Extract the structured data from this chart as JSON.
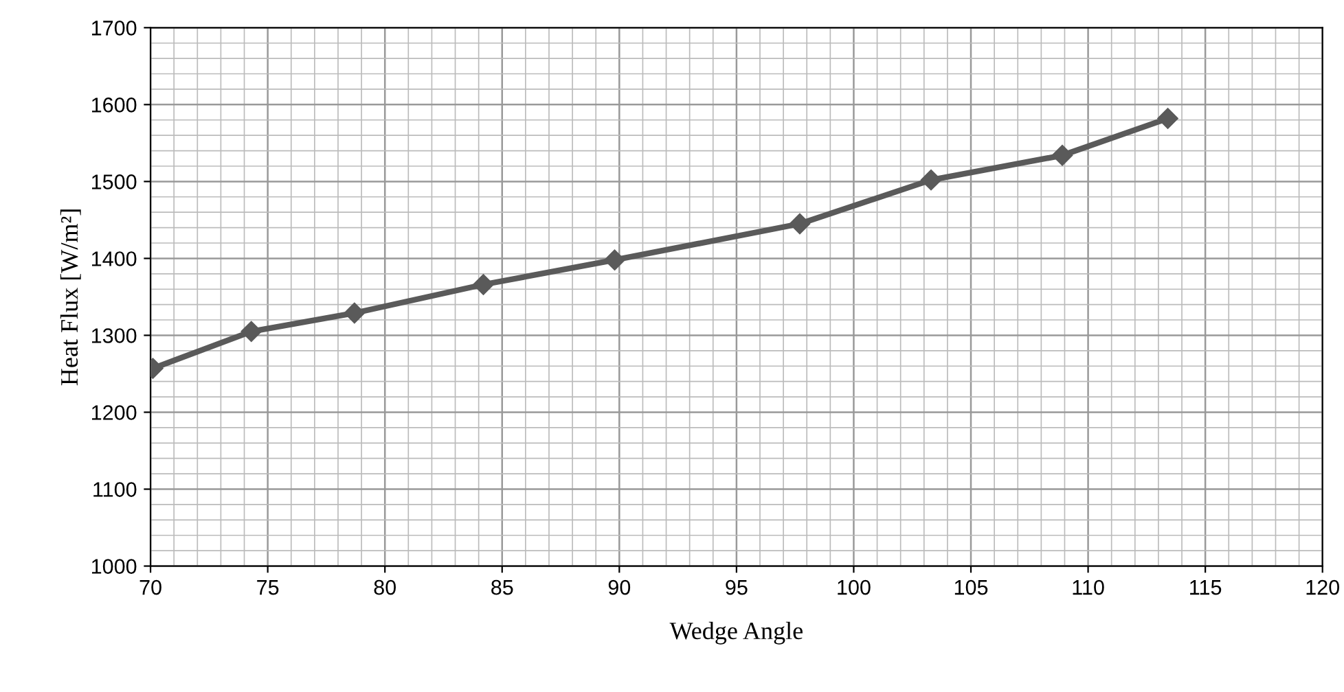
{
  "chart_data": {
    "type": "line",
    "xlabel": "Wedge Angle",
    "ylabel": "Heat Flux [W/m²]",
    "x": [
      70.1,
      74.3,
      78.7,
      84.2,
      89.8,
      97.7,
      103.3,
      108.9,
      113.4
    ],
    "series": [
      {
        "color": "#5a5a5a",
        "values": [
          1257,
          1305,
          1329,
          1366,
          1398,
          1445,
          1502,
          1534,
          1582
        ]
      }
    ],
    "xlim": [
      70,
      120
    ],
    "xticks": [
      70,
      75,
      80,
      85,
      90,
      95,
      100,
      105,
      110,
      115,
      120
    ],
    "ylim": [
      1000,
      1700
    ],
    "yticks": [
      1000,
      1100,
      1200,
      1300,
      1400,
      1500,
      1600,
      1700
    ],
    "grid": true,
    "marker": "diamond",
    "line_style": "solid",
    "legend": false
  }
}
